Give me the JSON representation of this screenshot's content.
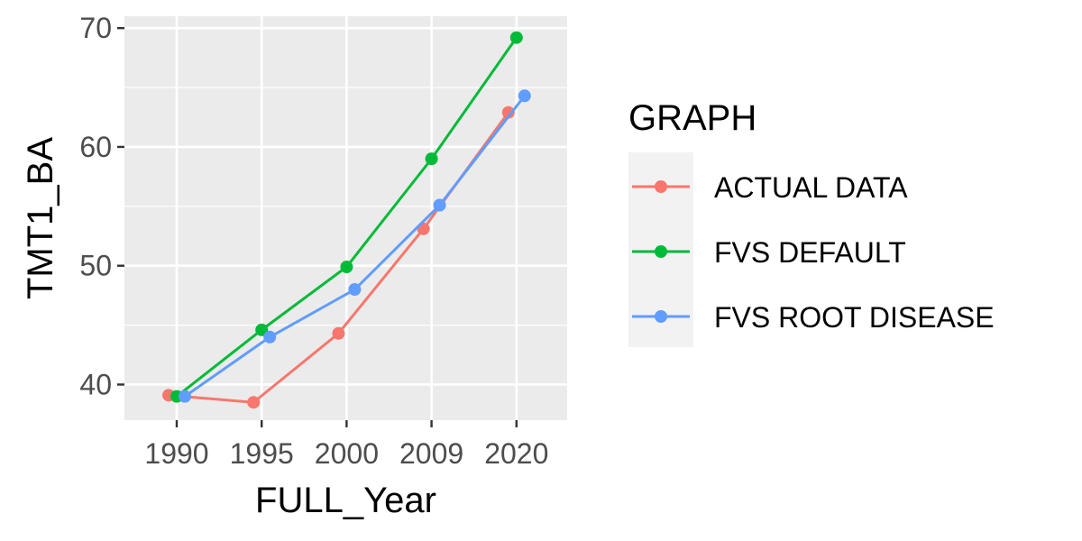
{
  "chart_data": {
    "type": "line",
    "xlabel": "FULL_Year",
    "ylabel": "TMT1_BA",
    "categories": [
      "1990",
      "1995",
      "2000",
      "2009",
      "2020"
    ],
    "ylim": [
      37,
      71
    ],
    "yticks": [
      40,
      50,
      60,
      70
    ],
    "grid": true,
    "legend": {
      "title": "GRAPH",
      "position": "right"
    },
    "series": [
      {
        "name": "ACTUAL DATA",
        "color": "#F8766D",
        "values": [
          39.1,
          38.5,
          44.3,
          53.1,
          62.9
        ]
      },
      {
        "name": "FVS DEFAULT",
        "color": "#00BA38",
        "values": [
          39.0,
          44.6,
          49.9,
          59.0,
          69.2
        ]
      },
      {
        "name": "FVS ROOT DISEASE",
        "color": "#619CFF",
        "values": [
          39.0,
          44.0,
          48.0,
          55.1,
          64.3
        ]
      }
    ]
  }
}
